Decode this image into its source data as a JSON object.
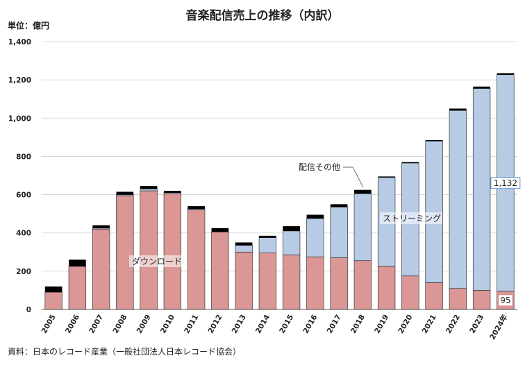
{
  "title": "音楽配信売上の推移（内訳）",
  "unit_label": "単位：億円",
  "source": "資料：日本のレコード産業（一般社団法人日本レコード協会）",
  "colors": {
    "download": "#da9796",
    "streaming": "#b7cbe5",
    "other": "#000000",
    "grid": "#d0d0d0"
  },
  "annotations": {
    "other_label": "配信その他",
    "streaming_label": "ストリーミング",
    "download_label": "ダウンロード"
  },
  "chart_data": {
    "type": "bar",
    "stacked": true,
    "categories": [
      "2005",
      "2006",
      "2007",
      "2008",
      "2009",
      "2010",
      "2011",
      "2012",
      "2013",
      "2014",
      "2015",
      "2016",
      "2017",
      "2018",
      "2019",
      "2020",
      "2021",
      "2022",
      "2023",
      "2024年"
    ],
    "series": [
      {
        "name": "ダウンロード",
        "values": [
          90,
          225,
          420,
          595,
          620,
          605,
          520,
          405,
          300,
          295,
          285,
          275,
          270,
          255,
          225,
          175,
          140,
          110,
          100,
          95
        ]
      },
      {
        "name": "ストリーミング",
        "values": [
          0,
          0,
          5,
          5,
          10,
          5,
          5,
          0,
          35,
          80,
          125,
          200,
          265,
          350,
          465,
          590,
          740,
          930,
          1055,
          1132
        ]
      },
      {
        "name": "配信その他",
        "values": [
          30,
          35,
          15,
          15,
          15,
          10,
          15,
          20,
          15,
          10,
          25,
          20,
          15,
          20,
          5,
          5,
          5,
          10,
          10,
          8
        ]
      }
    ],
    "ylim": [
      0,
      1400
    ],
    "yticks": [
      0,
      200,
      400,
      600,
      800,
      1000,
      1200,
      1400
    ],
    "ytick_labels": [
      "0",
      "200",
      "400",
      "600",
      "800",
      "1,000",
      "1,200",
      "1,400"
    ],
    "data_labels": [
      {
        "series": 1,
        "index": 19,
        "text": "1,132"
      },
      {
        "series": 0,
        "index": 19,
        "text": "95"
      }
    ],
    "grid": true,
    "legend": "none"
  }
}
